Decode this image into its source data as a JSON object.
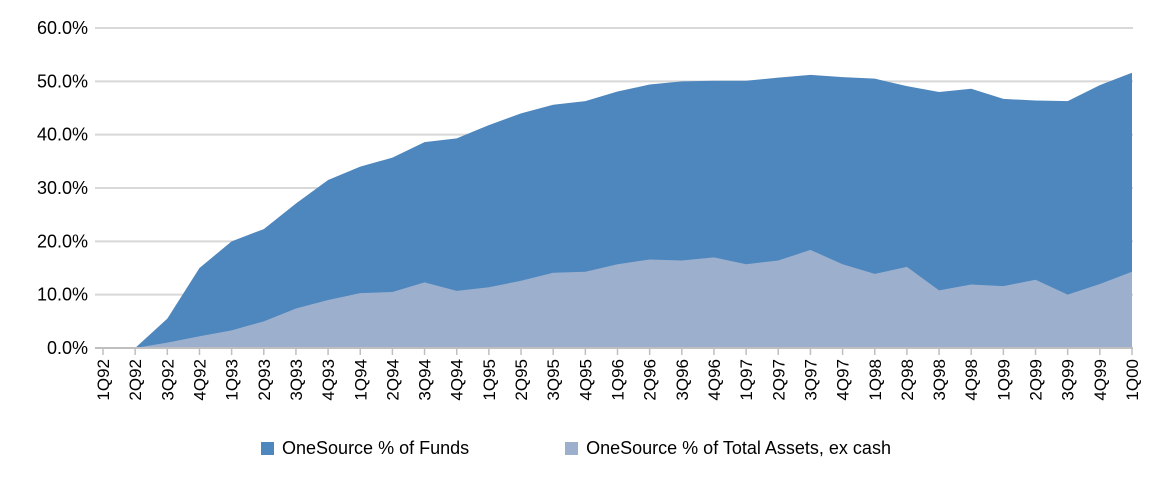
{
  "chart_data": {
    "type": "area",
    "overlap": true,
    "title": "",
    "xlabel": "",
    "ylabel": "",
    "ylim": [
      0,
      60
    ],
    "grid": "horizontal",
    "legend_position": "bottom",
    "ytick_labels": [
      "0.0%",
      "10.0%",
      "20.0%",
      "30.0%",
      "40.0%",
      "50.0%",
      "60.0%"
    ],
    "categories": [
      "1Q92",
      "2Q92",
      "3Q92",
      "4Q92",
      "1Q93",
      "2Q93",
      "3Q93",
      "4Q93",
      "1Q94",
      "2Q94",
      "3Q94",
      "4Q94",
      "1Q95",
      "2Q95",
      "3Q95",
      "4Q95",
      "1Q96",
      "2Q96",
      "3Q96",
      "4Q96",
      "1Q97",
      "2Q97",
      "3Q97",
      "4Q97",
      "1Q98",
      "2Q98",
      "3Q98",
      "4Q98",
      "1Q99",
      "2Q99",
      "3Q99",
      "4Q99",
      "1Q00"
    ],
    "series": [
      {
        "name": "OneSource % of Funds",
        "color": "#4e86be",
        "values": [
          0,
          0,
          5.5,
          15.0,
          20.0,
          22.3,
          27.1,
          31.5,
          34.0,
          35.7,
          38.6,
          39.3,
          41.8,
          44.0,
          45.6,
          46.3,
          48.1,
          49.4,
          50.0,
          50.1,
          50.1,
          50.7,
          51.2,
          50.8,
          50.5,
          49.1,
          48.0,
          48.6,
          46.7,
          46.4,
          46.3,
          49.3,
          51.6
        ]
      },
      {
        "name": "OneSource % of Total Assets, ex cash",
        "color": "#9cb0ce",
        "values": [
          0,
          0,
          1.0,
          2.2,
          3.3,
          5.0,
          7.4,
          9.0,
          10.3,
          10.5,
          12.3,
          10.7,
          11.4,
          12.6,
          14.1,
          14.3,
          15.7,
          16.6,
          16.4,
          17.0,
          15.7,
          16.4,
          18.4,
          15.7,
          13.9,
          15.2,
          10.8,
          11.9,
          11.6,
          12.8,
          10.0,
          12.0,
          14.3
        ]
      }
    ],
    "axis_color": "#bfbfbf",
    "gridline_color": "#d8d8d8"
  },
  "legend": {
    "items": [
      {
        "label": "OneSource % of Funds"
      },
      {
        "label": "OneSource % of Total Assets, ex cash"
      }
    ]
  }
}
